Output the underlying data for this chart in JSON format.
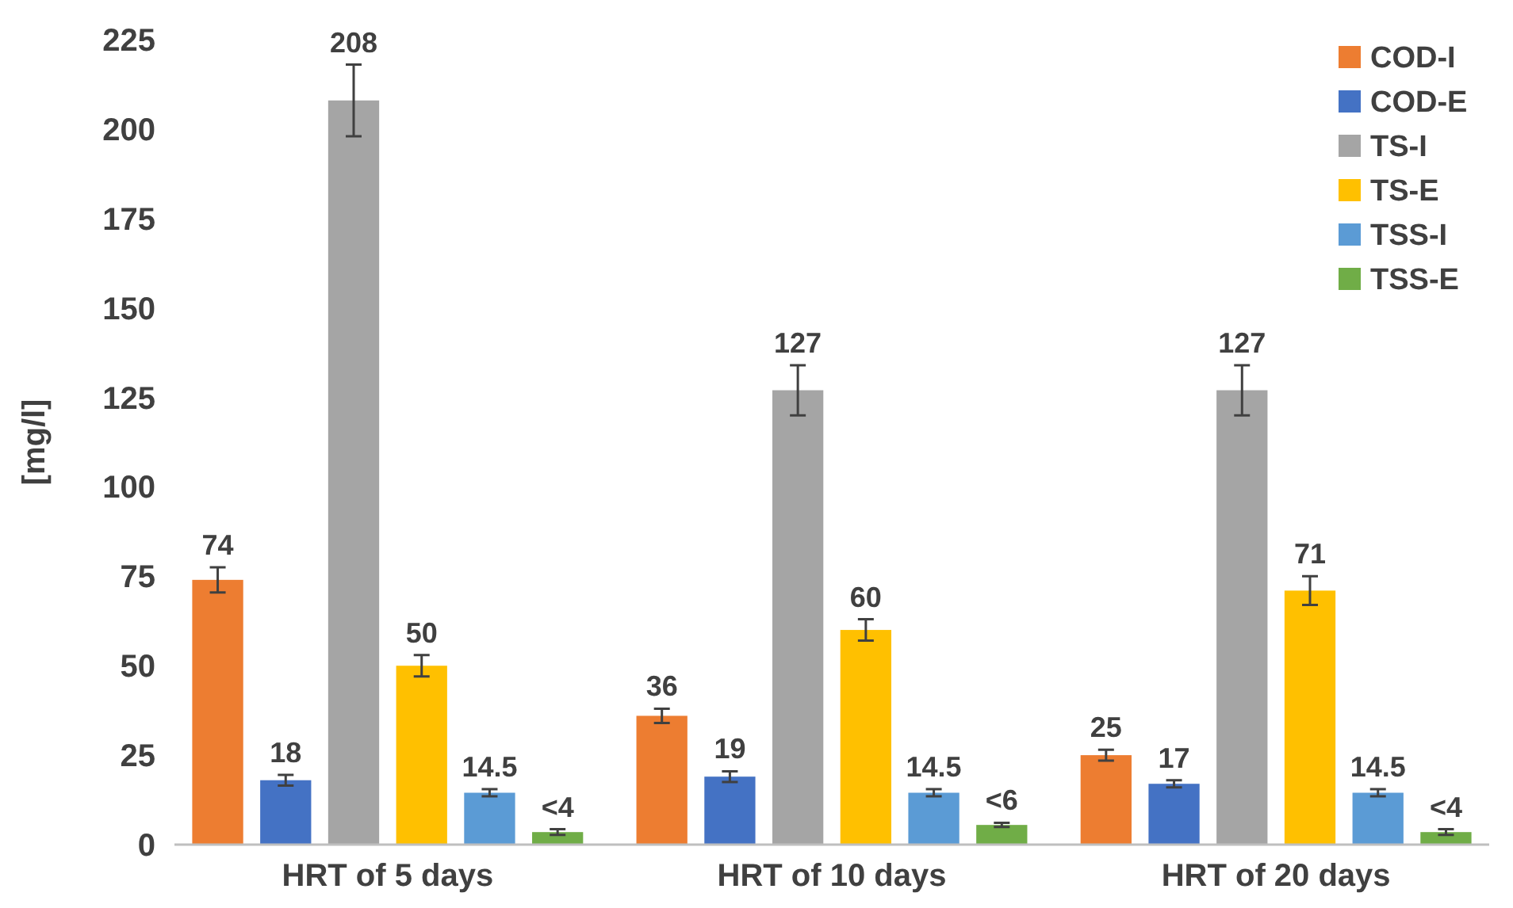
{
  "chart_data": {
    "type": "bar",
    "ylabel": "[mg/l]",
    "categories": [
      "HRT of 5 days",
      "HRT of 10 days",
      "HRT of 20 days"
    ],
    "ylim": [
      0,
      225
    ],
    "yticks": [
      0,
      25,
      50,
      75,
      100,
      125,
      150,
      175,
      200,
      225
    ],
    "grid": false,
    "legend": "top right",
    "series": [
      {
        "name": "COD-I",
        "color": "#ed7d31",
        "values": [
          74,
          36,
          25
        ],
        "errors": [
          3.5,
          2,
          1.5
        ],
        "value_labels": [
          "74",
          "36",
          "25"
        ]
      },
      {
        "name": "COD-E",
        "color": "#4472c4",
        "values": [
          18,
          19,
          17
        ],
        "errors": [
          1.5,
          1.5,
          1
        ],
        "value_labels": [
          "18",
          "19",
          "17"
        ]
      },
      {
        "name": "TS-I",
        "color": "#a5a5a5",
        "values": [
          208,
          127,
          127
        ],
        "errors": [
          10,
          7,
          7
        ],
        "value_labels": [
          "208",
          "127",
          "127"
        ]
      },
      {
        "name": "TS-E",
        "color": "#ffc000",
        "values": [
          50,
          60,
          71
        ],
        "errors": [
          3,
          3,
          4
        ],
        "value_labels": [
          "50",
          "60",
          "71"
        ]
      },
      {
        "name": "TSS-I",
        "color": "#5b9bd5",
        "values": [
          14.5,
          14.5,
          14.5
        ],
        "errors": [
          1,
          1,
          1
        ],
        "value_labels": [
          "14.5",
          "14.5",
          "14.5"
        ]
      },
      {
        "name": "TSS-E",
        "color": "#70ad47",
        "values": [
          3.5,
          5.5,
          3.5
        ],
        "errors": [
          0.8,
          0.6,
          0.8
        ],
        "value_labels": [
          "<4",
          "<6",
          "<4"
        ]
      }
    ]
  }
}
